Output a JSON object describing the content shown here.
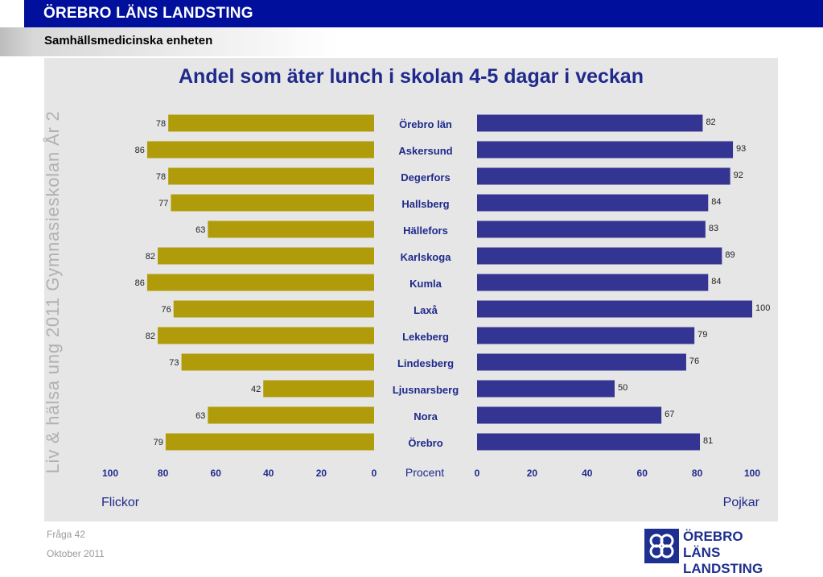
{
  "header": {
    "title": "ÖREBRO LÄNS LANDSTING",
    "subtitle": "Samhällsmedicinska enheten"
  },
  "side_text": "Liv & hälsa ung 2011 Gymnasieskolan År 2",
  "footer": {
    "question": "Fråga 42",
    "date": "Oktober 2011"
  },
  "logo": {
    "line1": "ÖREBRO LÄNS",
    "line2": "LANDSTING"
  },
  "colors": {
    "girls": "#b09c0a",
    "boys": "#343593",
    "category_text": "#1f2a8c",
    "title": "#1f2a8c"
  },
  "chart_data": {
    "type": "bar",
    "orientation": "horizontal-butterfly",
    "title": "Andel som äter lunch i skolan 4-5 dagar i veckan",
    "center_axis_label": "Procent",
    "categories": [
      "Örebro län",
      "Askersund",
      "Degerfors",
      "Hallsberg",
      "Hällefors",
      "Karlskoga",
      "Kumla",
      "Laxå",
      "Lekeberg",
      "Lindesberg",
      "Ljusnarsberg",
      "Nora",
      "Örebro"
    ],
    "series": [
      {
        "name": "Flickor",
        "side": "left",
        "values": [
          78,
          86,
          78,
          77,
          63,
          82,
          86,
          76,
          82,
          73,
          42,
          63,
          79
        ]
      },
      {
        "name": "Pojkar",
        "side": "right",
        "values": [
          82,
          93,
          92,
          84,
          83,
          89,
          84,
          100,
          79,
          76,
          50,
          67,
          81
        ]
      }
    ],
    "xlim": [
      0,
      100
    ],
    "xticks_left": [
      "100",
      "80",
      "60",
      "40",
      "20",
      "0"
    ],
    "xticks_right": [
      "0",
      "20",
      "40",
      "60",
      "80",
      "100"
    ],
    "data_labels": true,
    "grid": false
  }
}
